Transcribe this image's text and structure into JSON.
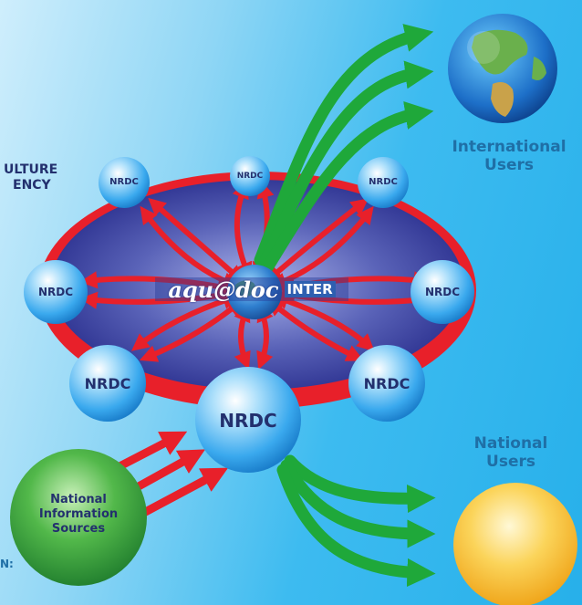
{
  "left_cut_text": {
    "line1": "ULTURE",
    "line2": "ENCY",
    "bottom": "N:"
  },
  "center_logo": {
    "part1": "aqu@doc",
    "part2": "INTER"
  },
  "nodes": [
    {
      "id": "nrdc-top",
      "label": "NRDC"
    },
    {
      "id": "nrdc-upper-left",
      "label": "NRDC"
    },
    {
      "id": "nrdc-upper-right",
      "label": "NRDC"
    },
    {
      "id": "nrdc-left",
      "label": "NRDC"
    },
    {
      "id": "nrdc-right",
      "label": "NRDC"
    },
    {
      "id": "nrdc-lower-left",
      "label": "NRDC"
    },
    {
      "id": "nrdc-lower-right",
      "label": "NRDC"
    },
    {
      "id": "nrdc-main",
      "label": "NRDC"
    }
  ],
  "international": {
    "line1": "International",
    "line2": "Users"
  },
  "national_users": {
    "line1": "National",
    "line2": "Users"
  },
  "national_sources": {
    "line1": "National",
    "line2": "Information",
    "line3": "Sources"
  },
  "colors": {
    "ring": "#e8202a",
    "ellipse_center": "#8a96dc",
    "ellipse_edge": "#2a2f8e",
    "arrow_red": "#e8202a",
    "arrow_green": "#1fa83a",
    "label_blue": "#1f6fa6",
    "label_dark": "#23306e",
    "node_sphere": "#3aa9ee",
    "national_sphere": "#f2b21c",
    "sources_sphere": "#2b9a3a"
  },
  "icons": [
    "globe-icon",
    "sun-sphere-icon"
  ]
}
